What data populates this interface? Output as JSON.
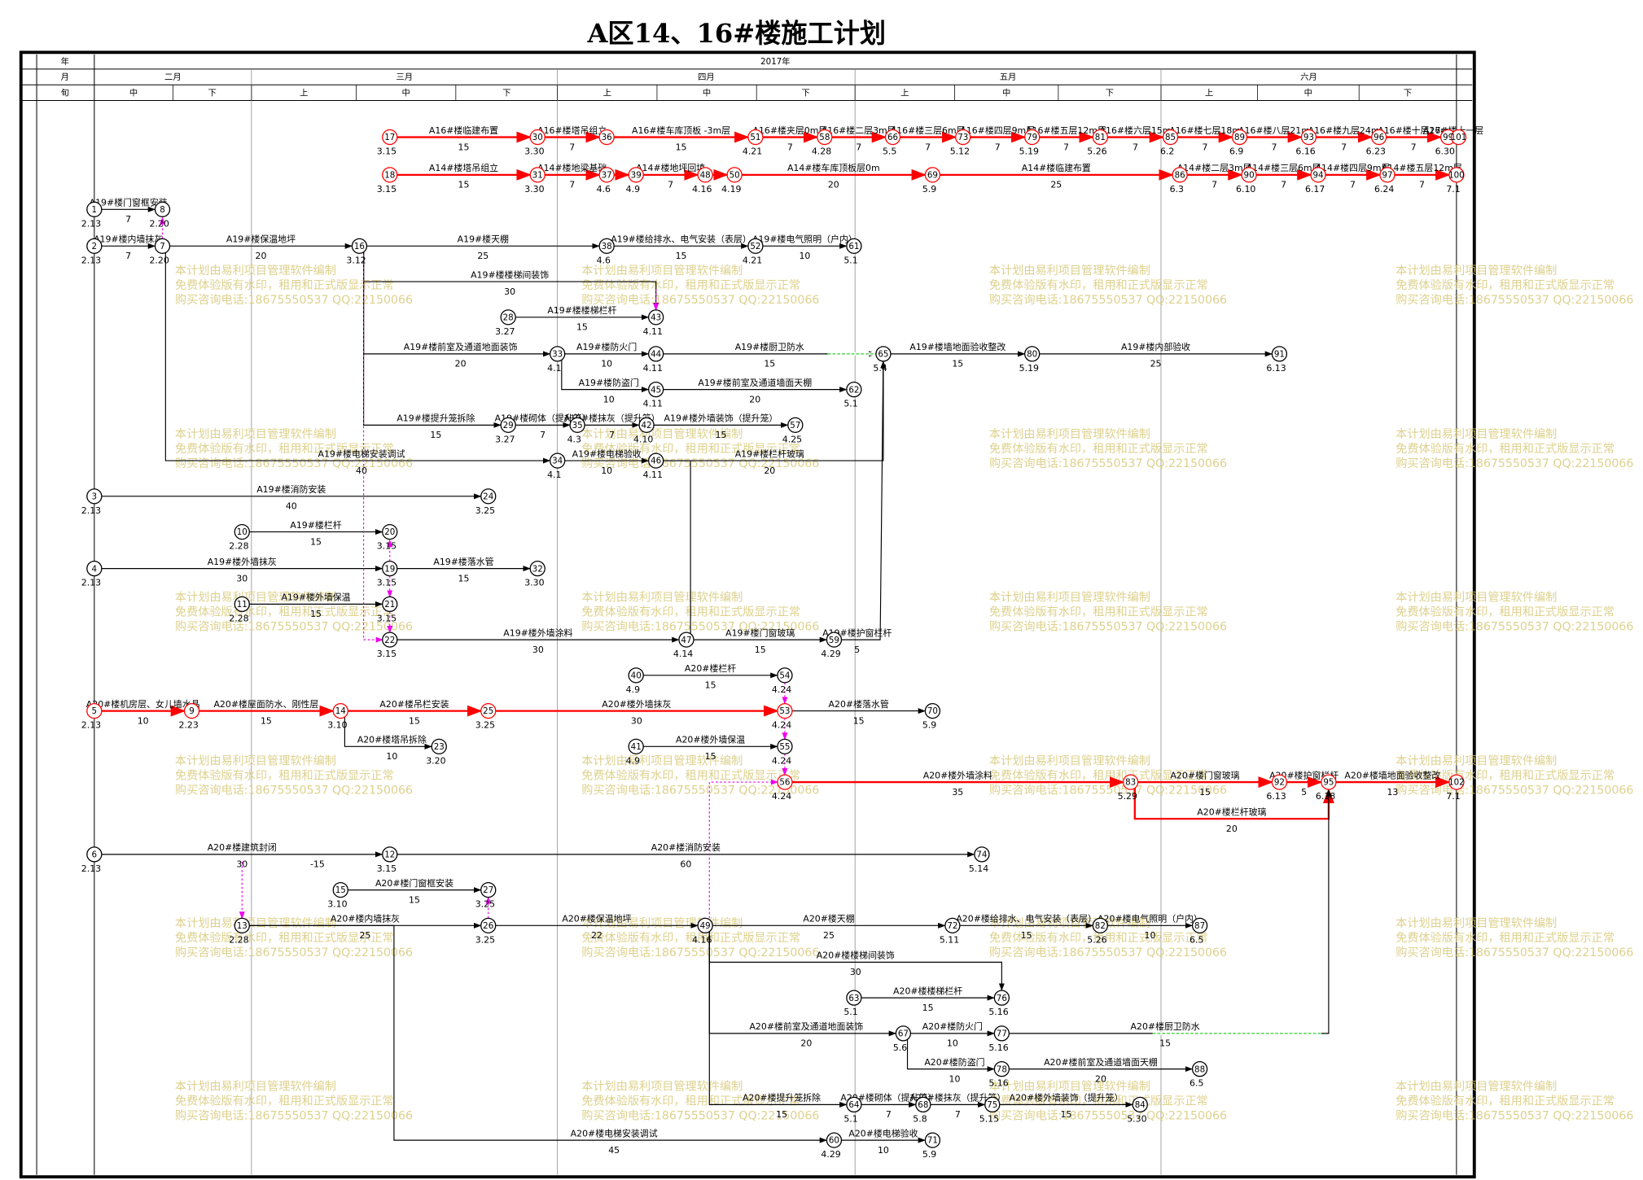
{
  "title": "A区14、16#楼施工计划",
  "timescale": {
    "row_headers": [
      "年",
      "月",
      "旬"
    ],
    "year": "2017年",
    "months": [
      "二月",
      "三月",
      "四月",
      "五月",
      "六月"
    ],
    "periods": [
      "中",
      "下",
      "上",
      "中",
      "下",
      "上",
      "中",
      "下",
      "上",
      "中",
      "下",
      "上",
      "中",
      "下"
    ]
  },
  "nodes": [
    {
      "id": "17",
      "date": "3.15"
    },
    {
      "id": "30",
      "date": "3.30"
    },
    {
      "id": "36"
    },
    {
      "id": "51",
      "date": "4.21"
    },
    {
      "id": "58",
      "date": "4.28"
    },
    {
      "id": "66",
      "date": "5.5"
    },
    {
      "id": "73",
      "date": "5.12"
    },
    {
      "id": "79",
      "date": "5.19"
    },
    {
      "id": "81",
      "date": "5.26"
    },
    {
      "id": "85",
      "date": "6.2"
    },
    {
      "id": "89",
      "date": "6.9"
    },
    {
      "id": "93",
      "date": "6.16"
    },
    {
      "id": "96",
      "date": "6.23"
    },
    {
      "id": "99",
      "date": "6.30"
    },
    {
      "id": "101"
    },
    {
      "id": "18",
      "date": "3.15"
    },
    {
      "id": "31",
      "date": "3.30"
    },
    {
      "id": "37",
      "date": "4.6"
    },
    {
      "id": "39",
      "date": "4.9"
    },
    {
      "id": "48",
      "date": "4.16"
    },
    {
      "id": "50",
      "date": "4.19"
    },
    {
      "id": "69",
      "date": "5.9"
    },
    {
      "id": "86",
      "date": "6.3"
    },
    {
      "id": "90",
      "date": "6.10"
    },
    {
      "id": "94",
      "date": "6.17"
    },
    {
      "id": "97",
      "date": "6.24"
    },
    {
      "id": "100",
      "date": "7.1"
    },
    {
      "id": "1",
      "date": "2.13"
    },
    {
      "id": "8",
      "date": "2.20"
    },
    {
      "id": "2",
      "date": "2.13"
    },
    {
      "id": "7",
      "date": "2.20"
    },
    {
      "id": "16",
      "date": "3.12"
    },
    {
      "id": "38",
      "date": "4.6"
    },
    {
      "id": "52",
      "date": "4.21"
    },
    {
      "id": "61",
      "date": "5.1"
    },
    {
      "id": "43",
      "date": "4.11"
    },
    {
      "id": "28",
      "date": "3.27"
    },
    {
      "id": "33",
      "date": "4.1"
    },
    {
      "id": "44",
      "date": "4.11"
    },
    {
      "id": "65",
      "date": "5.4"
    },
    {
      "id": "80",
      "date": "5.19"
    },
    {
      "id": "91",
      "date": "6.13"
    },
    {
      "id": "45",
      "date": "4.11"
    },
    {
      "id": "62",
      "date": "5.1"
    },
    {
      "id": "29",
      "date": "3.27"
    },
    {
      "id": "35",
      "date": "4.3"
    },
    {
      "id": "42",
      "date": "4.10"
    },
    {
      "id": "57",
      "date": "4.25"
    },
    {
      "id": "34",
      "date": "4.1"
    },
    {
      "id": "46",
      "date": "4.11"
    },
    {
      "id": "3",
      "date": "2.13"
    },
    {
      "id": "24",
      "date": "3.25"
    },
    {
      "id": "10",
      "date": "2.28"
    },
    {
      "id": "20",
      "date": "3.15"
    },
    {
      "id": "4",
      "date": "2.13"
    },
    {
      "id": "19",
      "date": "3.15"
    },
    {
      "id": "32",
      "date": "3.30"
    },
    {
      "id": "11",
      "date": "2.28"
    },
    {
      "id": "21",
      "date": "3.15"
    },
    {
      "id": "22",
      "date": "3.15"
    },
    {
      "id": "47",
      "date": "4.14"
    },
    {
      "id": "59",
      "date": "4.29"
    },
    {
      "id": "40",
      "date": "4.9"
    },
    {
      "id": "54",
      "date": "4.24"
    },
    {
      "id": "5",
      "date": "2.13"
    },
    {
      "id": "9",
      "date": "2.23"
    },
    {
      "id": "14",
      "date": "3.10"
    },
    {
      "id": "25",
      "date": "3.25"
    },
    {
      "id": "53",
      "date": "4.24"
    },
    {
      "id": "70",
      "date": "5.9"
    },
    {
      "id": "23",
      "date": "3.20"
    },
    {
      "id": "41",
      "date": "4.9"
    },
    {
      "id": "55",
      "date": "4.24"
    },
    {
      "id": "56",
      "date": "4.24"
    },
    {
      "id": "83",
      "date": "5.29"
    },
    {
      "id": "92",
      "date": "6.13"
    },
    {
      "id": "95",
      "date": "6.18"
    },
    {
      "id": "102",
      "date": "7.1"
    },
    {
      "id": "6",
      "date": "2.13"
    },
    {
      "id": "12",
      "date": "3.15"
    },
    {
      "id": "74",
      "date": "5.14"
    },
    {
      "id": "15",
      "date": "3.10"
    },
    {
      "id": "27",
      "date": "3.25"
    },
    {
      "id": "13",
      "date": "2.28"
    },
    {
      "id": "26",
      "date": "3.25"
    },
    {
      "id": "49",
      "date": "4.16"
    },
    {
      "id": "72",
      "date": "5.11"
    },
    {
      "id": "82",
      "date": "5.26"
    },
    {
      "id": "87",
      "date": "6.5"
    },
    {
      "id": "63",
      "date": "5.1"
    },
    {
      "id": "76",
      "date": "5.16"
    },
    {
      "id": "67",
      "date": "5.6"
    },
    {
      "id": "77",
      "date": "5.16"
    },
    {
      "id": "78",
      "date": "5.16"
    },
    {
      "id": "88",
      "date": "6.5"
    },
    {
      "id": "64",
      "date": "5.1"
    },
    {
      "id": "68",
      "date": "5.8"
    },
    {
      "id": "75",
      "date": "5.15"
    },
    {
      "id": "84",
      "date": "5.30"
    },
    {
      "id": "60",
      "date": "4.29"
    },
    {
      "id": "71",
      "date": "5.9"
    }
  ],
  "activities": [
    {
      "label": "A16#楼临建布置",
      "duration": 15
    },
    {
      "label": "A16#楼塔吊组立",
      "duration": 7
    },
    {
      "label": "A16#楼车库顶板 -3m层",
      "duration": 15
    },
    {
      "label": "A16#楼夹层0m层",
      "duration": 7
    },
    {
      "label": "A16#楼二层3m层",
      "duration": 7
    },
    {
      "label": "A16#楼三层6m层",
      "duration": 7
    },
    {
      "label": "A16#楼四层9m层",
      "duration": 7
    },
    {
      "label": "A16#楼五层12m层",
      "duration": 7
    },
    {
      "label": "A16#楼六层15m",
      "duration": 7
    },
    {
      "label": "A16#楼七层18m",
      "duration": 7
    },
    {
      "label": "A16#楼八层21m",
      "duration": 7
    },
    {
      "label": "A16#楼九层24m",
      "duration": 7
    },
    {
      "label": "A16#楼十层27m",
      "duration": 7
    },
    {
      "label": "A16#楼十一层"
    },
    {
      "label": "A14#楼塔吊组立",
      "duration": 15
    },
    {
      "label": "A14#楼地梁基础",
      "duration": 7
    },
    {
      "label": "A14#楼地坪回填",
      "duration": 7
    },
    {
      "label": "A14#楼车库顶板层0m",
      "duration": 20
    },
    {
      "label": "A14#楼临建布置",
      "duration": 25
    },
    {
      "label": "A14#楼二层3m层",
      "duration": 7
    },
    {
      "label": "A14#楼三层6m层",
      "duration": 7
    },
    {
      "label": "A14#楼四层9m层",
      "duration": 7
    },
    {
      "label": "A14#楼五层12m层",
      "duration": 7
    },
    {
      "label": "A19#楼门窗框安装",
      "duration": 7
    },
    {
      "label": "A19#楼内墙抹灰",
      "duration": 7
    },
    {
      "label": "A19#楼保温地坪",
      "duration": 20
    },
    {
      "label": "A19#楼天棚",
      "duration": 25
    },
    {
      "label": "A19#楼给排水、电气安装（表层）",
      "duration": 15
    },
    {
      "label": "A19#楼电气照明（户内）",
      "duration": 10
    },
    {
      "label": "A19#楼楼梯间装饰",
      "duration": 30
    },
    {
      "label": "A19#楼楼梯栏杆",
      "duration": 15
    },
    {
      "label": "A19#楼前室及通道地面装饰",
      "duration": 20
    },
    {
      "label": "A19#楼防火门",
      "duration": 10
    },
    {
      "label": "A19#楼厨卫防水",
      "duration": 15
    },
    {
      "label": "A19#楼墙地面验收整改",
      "duration": 15
    },
    {
      "label": "A19#楼内部验收",
      "duration": 25
    },
    {
      "label": "A19#楼防盗门",
      "duration": 10
    },
    {
      "label": "A19#楼前室及通道墙面天棚",
      "duration": 20
    },
    {
      "label": "A19#楼提升笼拆除",
      "duration": 15
    },
    {
      "label": "A19#楼砌体（提升笼）",
      "duration": 7
    },
    {
      "label": "A19#楼抹灰（提升笼）",
      "duration": 7
    },
    {
      "label": "A19#楼外墙装饰（提升笼）",
      "duration": 15
    },
    {
      "label": "A19#楼电梯安装调试",
      "duration": 40
    },
    {
      "label": "A19#楼电梯验收",
      "duration": 10
    },
    {
      "label": "A19#楼栏杆玻璃",
      "duration": 20
    },
    {
      "label": "A19#楼消防安装",
      "duration": 40
    },
    {
      "label": "A19#楼栏杆",
      "duration": 15
    },
    {
      "label": "A19#楼外墙抹灰",
      "duration": 30
    },
    {
      "label": "A19#楼落水管",
      "duration": 15
    },
    {
      "label": "A19#楼外墙保温",
      "duration": 15
    },
    {
      "label": "A19#楼外墙涂料",
      "duration": 30
    },
    {
      "label": "A19#楼门窗玻璃",
      "duration": 15
    },
    {
      "label": "A19#楼护窗栏杆",
      "duration": 5
    },
    {
      "label": "A20#楼栏杆",
      "duration": 15
    },
    {
      "label": "A20#楼机房层、女儿墙水晶",
      "duration": 10
    },
    {
      "label": "A20#楼屋面防水、刚性层",
      "duration": 15
    },
    {
      "label": "A20#楼吊栏安装",
      "duration": 15
    },
    {
      "label": "A20#楼外墙抹灰",
      "duration": 30
    },
    {
      "label": "A20#楼落水管",
      "duration": 15
    },
    {
      "label": "A20#楼塔吊拆除",
      "duration": 10
    },
    {
      "label": "A20#楼外墙保温",
      "duration": 15
    },
    {
      "label": "A20#楼外墙涂料",
      "duration": 35
    },
    {
      "label": "A20#楼门窗玻璃",
      "duration": 15
    },
    {
      "label": "A20#楼护窗栏杆",
      "duration": 5
    },
    {
      "label": "A20#楼墙地面验收整改",
      "duration": 13
    },
    {
      "label": "A20#楼栏杆玻璃",
      "duration": 20
    },
    {
      "label": "A20#楼建筑封闭",
      "duration": 30,
      "lag": "-15"
    },
    {
      "label": "A20#楼消防安装",
      "duration": 60
    },
    {
      "label": "A20#楼门窗框安装",
      "duration": 15
    },
    {
      "label": "A20#楼内墙抹灰",
      "duration": 25
    },
    {
      "label": "A20#楼保温地坪",
      "duration": 22
    },
    {
      "label": "A20#楼天棚",
      "duration": 25
    },
    {
      "label": "A20#楼给排水、电气安装（表层）",
      "duration": 15
    },
    {
      "label": "A20#楼电气照明（户内）",
      "duration": 10
    },
    {
      "label": "A20#楼楼梯间装饰",
      "duration": 30
    },
    {
      "label": "A20#楼楼梯栏杆",
      "duration": 15
    },
    {
      "label": "A20#楼前室及通道地面装饰",
      "duration": 20
    },
    {
      "label": "A20#楼防火门",
      "duration": 10
    },
    {
      "label": "A20#楼厨卫防水",
      "duration": 15
    },
    {
      "label": "A20#楼防盗门",
      "duration": 10
    },
    {
      "label": "A20#楼前室及通道墙面天棚",
      "duration": 20
    },
    {
      "label": "A20#楼提升笼拆除",
      "duration": 15
    },
    {
      "label": "A20#楼砌体（提升笼）",
      "duration": 7
    },
    {
      "label": "A20#楼抹灰（提升笼）",
      "duration": 7
    },
    {
      "label": "A20#楼外墙装饰（提升笼）",
      "duration": 15
    },
    {
      "label": "A20#楼电梯安装调试",
      "duration": 45
    },
    {
      "label": "A20#楼电梯验收",
      "duration": 10
    }
  ],
  "watermark": [
    "本计划由易利项目管理软件编制",
    "免费体验版有水印，租用和正式版显示正常",
    "购买咨询电话:18675550537 QQ:22150066"
  ]
}
